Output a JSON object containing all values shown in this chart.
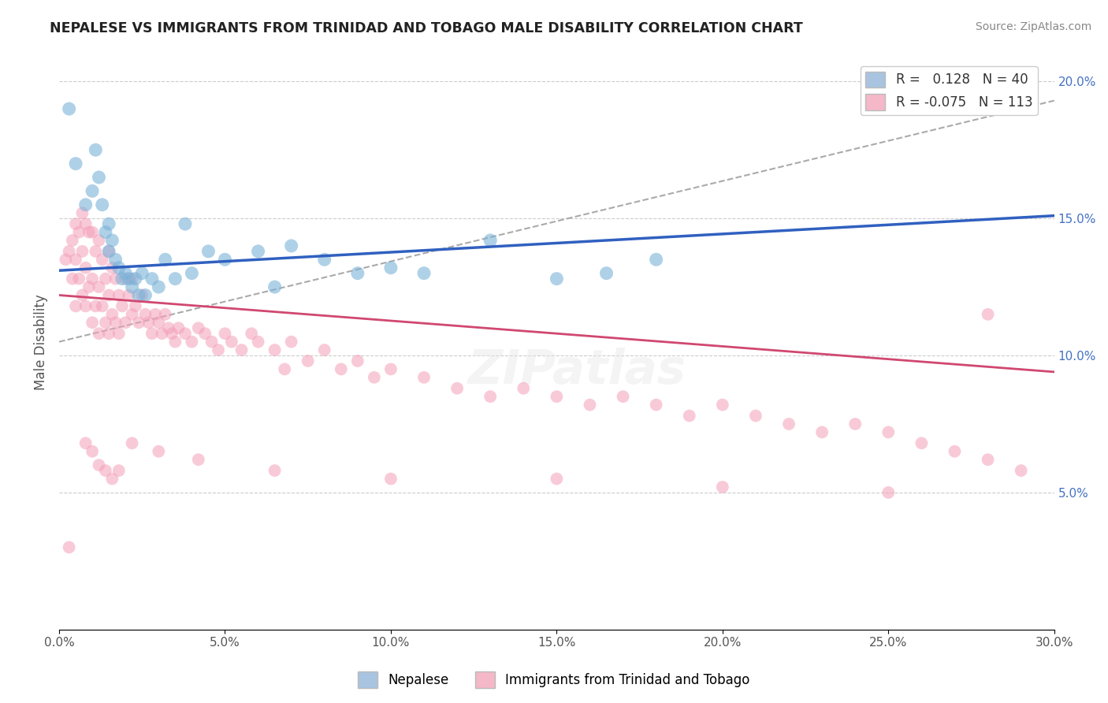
{
  "title": "NEPALESE VS IMMIGRANTS FROM TRINIDAD AND TOBAGO MALE DISABILITY CORRELATION CHART",
  "source": "Source: ZipAtlas.com",
  "ylabel": "Male Disability",
  "xlim": [
    0.0,
    0.3
  ],
  "ylim": [
    0.0,
    0.21
  ],
  "x_ticks": [
    0.0,
    0.05,
    0.1,
    0.15,
    0.2,
    0.25,
    0.3
  ],
  "x_tick_labels": [
    "0.0%",
    "5.0%",
    "10.0%",
    "15.0%",
    "20.0%",
    "25.0%",
    "30.0%"
  ],
  "y_ticks": [
    0.0,
    0.05,
    0.1,
    0.15,
    0.2
  ],
  "y_tick_labels_right": [
    "",
    "5.0%",
    "10.0%",
    "15.0%",
    "20.0%"
  ],
  "legend_label1": "R =   0.128   N = 40",
  "legend_label2": "R = -0.075   N = 113",
  "legend_color1": "#a8c4e0",
  "legend_color2": "#f4b8c8",
  "scatter_color1": "#7ab3d8",
  "scatter_color2": "#f4a0b8",
  "line_color1": "#3060c0",
  "line_color2": "#d04870",
  "watermark": "ZIPatlas",
  "blue_line_start_y": 0.131,
  "blue_line_end_y": 0.151,
  "pink_line_start_y": 0.122,
  "pink_line_end_y": 0.094,
  "dash_line_start_y": 0.105,
  "dash_line_end_y": 0.193,
  "nepalese_x": [
    0.003,
    0.005,
    0.008,
    0.01,
    0.011,
    0.012,
    0.013,
    0.014,
    0.015,
    0.015,
    0.016,
    0.017,
    0.018,
    0.019,
    0.02,
    0.021,
    0.022,
    0.023,
    0.024,
    0.025,
    0.026,
    0.028,
    0.03,
    0.032,
    0.035,
    0.038,
    0.04,
    0.045,
    0.05,
    0.06,
    0.065,
    0.07,
    0.08,
    0.09,
    0.1,
    0.11,
    0.13,
    0.15,
    0.165,
    0.18
  ],
  "nepalese_y": [
    0.19,
    0.17,
    0.155,
    0.16,
    0.175,
    0.165,
    0.155,
    0.145,
    0.148,
    0.138,
    0.142,
    0.135,
    0.132,
    0.128,
    0.13,
    0.128,
    0.125,
    0.128,
    0.122,
    0.13,
    0.122,
    0.128,
    0.125,
    0.135,
    0.128,
    0.148,
    0.13,
    0.138,
    0.135,
    0.138,
    0.125,
    0.14,
    0.135,
    0.13,
    0.132,
    0.13,
    0.142,
    0.128,
    0.13,
    0.135
  ],
  "tt_x": [
    0.002,
    0.003,
    0.004,
    0.004,
    0.005,
    0.005,
    0.005,
    0.006,
    0.006,
    0.007,
    0.007,
    0.007,
    0.008,
    0.008,
    0.008,
    0.009,
    0.009,
    0.01,
    0.01,
    0.01,
    0.011,
    0.011,
    0.012,
    0.012,
    0.012,
    0.013,
    0.013,
    0.014,
    0.014,
    0.015,
    0.015,
    0.015,
    0.016,
    0.016,
    0.017,
    0.017,
    0.018,
    0.018,
    0.019,
    0.02,
    0.02,
    0.021,
    0.022,
    0.022,
    0.023,
    0.024,
    0.025,
    0.026,
    0.027,
    0.028,
    0.029,
    0.03,
    0.031,
    0.032,
    0.033,
    0.034,
    0.035,
    0.036,
    0.038,
    0.04,
    0.042,
    0.044,
    0.046,
    0.048,
    0.05,
    0.052,
    0.055,
    0.058,
    0.06,
    0.065,
    0.068,
    0.07,
    0.075,
    0.08,
    0.085,
    0.09,
    0.095,
    0.1,
    0.11,
    0.12,
    0.13,
    0.14,
    0.15,
    0.16,
    0.17,
    0.18,
    0.19,
    0.2,
    0.21,
    0.22,
    0.23,
    0.24,
    0.25,
    0.26,
    0.27,
    0.28,
    0.29,
    0.022,
    0.03,
    0.042,
    0.065,
    0.1,
    0.15,
    0.2,
    0.25,
    0.28,
    0.008,
    0.01,
    0.012,
    0.014,
    0.016,
    0.018,
    0.003
  ],
  "tt_y": [
    0.135,
    0.138,
    0.142,
    0.128,
    0.148,
    0.135,
    0.118,
    0.145,
    0.128,
    0.152,
    0.138,
    0.122,
    0.148,
    0.132,
    0.118,
    0.145,
    0.125,
    0.145,
    0.128,
    0.112,
    0.138,
    0.118,
    0.142,
    0.125,
    0.108,
    0.135,
    0.118,
    0.128,
    0.112,
    0.138,
    0.122,
    0.108,
    0.132,
    0.115,
    0.128,
    0.112,
    0.122,
    0.108,
    0.118,
    0.128,
    0.112,
    0.122,
    0.128,
    0.115,
    0.118,
    0.112,
    0.122,
    0.115,
    0.112,
    0.108,
    0.115,
    0.112,
    0.108,
    0.115,
    0.11,
    0.108,
    0.105,
    0.11,
    0.108,
    0.105,
    0.11,
    0.108,
    0.105,
    0.102,
    0.108,
    0.105,
    0.102,
    0.108,
    0.105,
    0.102,
    0.095,
    0.105,
    0.098,
    0.102,
    0.095,
    0.098,
    0.092,
    0.095,
    0.092,
    0.088,
    0.085,
    0.088,
    0.085,
    0.082,
    0.085,
    0.082,
    0.078,
    0.082,
    0.078,
    0.075,
    0.072,
    0.075,
    0.072,
    0.068,
    0.065,
    0.062,
    0.058,
    0.068,
    0.065,
    0.062,
    0.058,
    0.055,
    0.055,
    0.052,
    0.05,
    0.115,
    0.068,
    0.065,
    0.06,
    0.058,
    0.055,
    0.058,
    0.03
  ]
}
